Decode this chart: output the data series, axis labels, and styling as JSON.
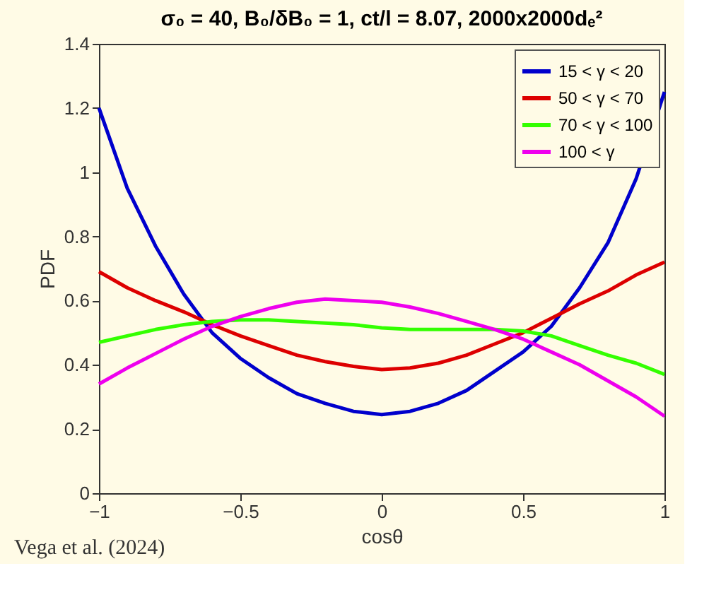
{
  "chart_data": {
    "type": "line",
    "title": "σ₀ = 40, B₀/δB₀ = 1, ct/l = 8.07, 2000x2000dₑ²",
    "xlabel": "cosθ",
    "ylabel": "PDF",
    "x": [
      -1,
      -0.9,
      -0.8,
      -0.7,
      -0.6,
      -0.5,
      -0.4,
      -0.3,
      -0.2,
      -0.1,
      0,
      0.1,
      0.2,
      0.3,
      0.4,
      0.5,
      0.6,
      0.7,
      0.8,
      0.9,
      1
    ],
    "series": [
      {
        "name": "15 < γ < 20",
        "color": "#0000cc",
        "values": [
          1.2,
          0.95,
          0.77,
          0.62,
          0.5,
          0.42,
          0.36,
          0.31,
          0.28,
          0.255,
          0.245,
          0.255,
          0.28,
          0.32,
          0.38,
          0.44,
          0.52,
          0.64,
          0.78,
          0.98,
          1.25
        ]
      },
      {
        "name": "50 < γ < 70",
        "color": "#dd0000",
        "values": [
          0.69,
          0.64,
          0.6,
          0.565,
          0.525,
          0.49,
          0.46,
          0.43,
          0.41,
          0.395,
          0.385,
          0.39,
          0.405,
          0.43,
          0.465,
          0.5,
          0.545,
          0.59,
          0.63,
          0.68,
          0.72
        ]
      },
      {
        "name": "70 < γ < 100",
        "color": "#33ff00",
        "values": [
          0.47,
          0.49,
          0.51,
          0.525,
          0.535,
          0.54,
          0.54,
          0.535,
          0.53,
          0.525,
          0.515,
          0.51,
          0.51,
          0.51,
          0.51,
          0.505,
          0.49,
          0.46,
          0.43,
          0.405,
          0.37
        ]
      },
      {
        "name": "100 < γ",
        "color": "#ee00ee",
        "values": [
          0.34,
          0.39,
          0.435,
          0.48,
          0.52,
          0.55,
          0.575,
          0.595,
          0.605,
          0.6,
          0.595,
          0.58,
          0.56,
          0.535,
          0.51,
          0.48,
          0.44,
          0.4,
          0.35,
          0.3,
          0.24
        ]
      }
    ],
    "xlim": [
      -1,
      1
    ],
    "xticks": [
      -1,
      -0.5,
      0,
      0.5,
      1
    ],
    "ylim": [
      0,
      1.4
    ],
    "yticks": [
      0,
      0.2,
      0.4,
      0.6,
      0.8,
      1,
      1.2,
      1.4
    ],
    "grid": false,
    "legend": "top right",
    "marker": "none",
    "line_style": "solid",
    "annotations": [
      "Vega et al. (2024)"
    ]
  }
}
